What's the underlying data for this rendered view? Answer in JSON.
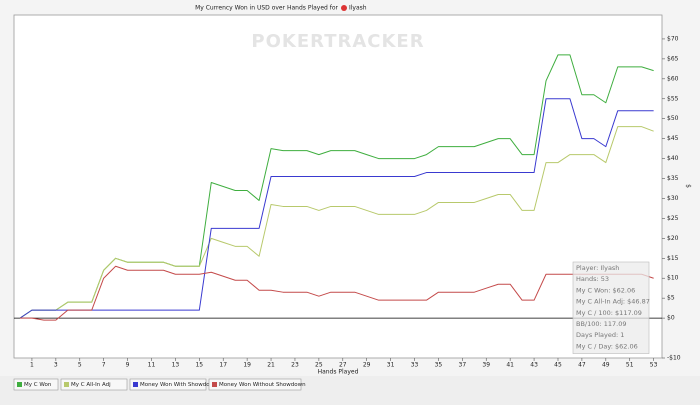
{
  "chart_data": {
    "type": "line",
    "title": "My Currency Won in USD over Hands Played for",
    "player": "Ilyash",
    "watermark": "POKERTRACKER",
    "x_label": "Hands Played",
    "y_label": "$",
    "x": [
      0,
      1,
      2,
      3,
      4,
      5,
      6,
      7,
      8,
      9,
      10,
      11,
      12,
      13,
      14,
      15,
      16,
      17,
      18,
      19,
      20,
      21,
      22,
      23,
      24,
      25,
      26,
      27,
      28,
      29,
      30,
      31,
      32,
      33,
      34,
      35,
      36,
      37,
      38,
      39,
      40,
      41,
      42,
      43,
      44,
      45,
      46,
      47,
      48,
      49,
      50,
      51,
      52,
      53
    ],
    "series": [
      {
        "name": "My C Won",
        "color": "#3fae3f",
        "values": [
          0,
          2,
          2,
          2,
          4,
          4,
          4,
          12,
          15,
          14,
          14,
          14,
          14,
          13,
          13,
          13,
          34,
          33,
          32,
          32,
          29.5,
          42.5,
          42,
          42,
          42,
          41,
          42,
          42,
          42,
          41,
          40,
          40,
          40,
          40,
          41,
          43,
          43,
          43,
          43,
          44,
          45,
          45,
          41,
          41,
          59.5,
          66,
          66,
          56,
          56,
          54,
          63,
          63,
          63,
          62.06
        ]
      },
      {
        "name": "My C All-In Adj",
        "color": "#b8c96c",
        "values": [
          0,
          2,
          2,
          2,
          4,
          4,
          4,
          12,
          15,
          14,
          14,
          14,
          14,
          13,
          13,
          13,
          20,
          19,
          18,
          18,
          15.5,
          28.5,
          28,
          28,
          28,
          27,
          28,
          28,
          28,
          27,
          26,
          26,
          26,
          26,
          27,
          29,
          29,
          29,
          29,
          30,
          31,
          31,
          27,
          27,
          39,
          39,
          41,
          41,
          41,
          39,
          48,
          48,
          48,
          46.87
        ]
      },
      {
        "name": "Money Won With Showdown",
        "color": "#3a3ad0",
        "values": [
          0,
          2,
          2,
          2,
          2,
          2,
          2,
          2,
          2,
          2,
          2,
          2,
          2,
          2,
          2,
          2,
          22.5,
          22.5,
          22.5,
          22.5,
          22.5,
          35.5,
          35.5,
          35.5,
          35.5,
          35.5,
          35.5,
          35.5,
          35.5,
          35.5,
          35.5,
          35.5,
          35.5,
          35.5,
          36.5,
          36.5,
          36.5,
          36.5,
          36.5,
          36.5,
          36.5,
          36.5,
          36.5,
          36.5,
          55,
          55,
          55,
          45,
          45,
          43,
          52,
          52,
          52,
          52
        ]
      },
      {
        "name": "Money Won Without Showdown",
        "color": "#c44a4a",
        "values": [
          0,
          0,
          -0.5,
          -0.5,
          2,
          2,
          2,
          10,
          13,
          12,
          12,
          12,
          12,
          11,
          11,
          11,
          11.5,
          10.5,
          9.5,
          9.5,
          7,
          7,
          6.5,
          6.5,
          6.5,
          5.5,
          6.5,
          6.5,
          6.5,
          5.5,
          4.5,
          4.5,
          4.5,
          4.5,
          4.5,
          6.5,
          6.5,
          6.5,
          6.5,
          7.5,
          8.5,
          8.5,
          4.5,
          4.5,
          11,
          11,
          11,
          11,
          11,
          11,
          11,
          11,
          11,
          10
        ]
      }
    ],
    "xlim": [
      -0.5,
      53.7
    ],
    "ylim": [
      -10,
      76
    ],
    "xticks": [
      1,
      3,
      5,
      7,
      9,
      11,
      13,
      15,
      17,
      19,
      21,
      23,
      25,
      27,
      29,
      31,
      33,
      35,
      37,
      39,
      41,
      43,
      45,
      47,
      49,
      51,
      53
    ],
    "yticks": [
      {
        "value": -10,
        "label": "-$10"
      },
      {
        "value": 0,
        "label": "$0"
      },
      {
        "value": 5,
        "label": "$5"
      },
      {
        "value": 10,
        "label": "$10"
      },
      {
        "value": 15,
        "label": "$15"
      },
      {
        "value": 20,
        "label": "$20"
      },
      {
        "value": 25,
        "label": "$25"
      },
      {
        "value": 30,
        "label": "$30"
      },
      {
        "value": 35,
        "label": "$35"
      },
      {
        "value": 40,
        "label": "$40"
      },
      {
        "value": 45,
        "label": "$45"
      },
      {
        "value": 50,
        "label": "$50"
      },
      {
        "value": 55,
        "label": "$55"
      },
      {
        "value": 60,
        "label": "$60"
      },
      {
        "value": 65,
        "label": "$65"
      },
      {
        "value": 70,
        "label": "$70"
      }
    ],
    "legend": "bottom",
    "tooltip": [
      "Player: Ilyash",
      "Hands: 53",
      "My C Won: $62.06",
      "My C All-In Adj: $46.87",
      "My C / 100: $117.09",
      "BB/100: 117.09",
      "Days Played: 1",
      "My C / Day: $62.06"
    ]
  }
}
